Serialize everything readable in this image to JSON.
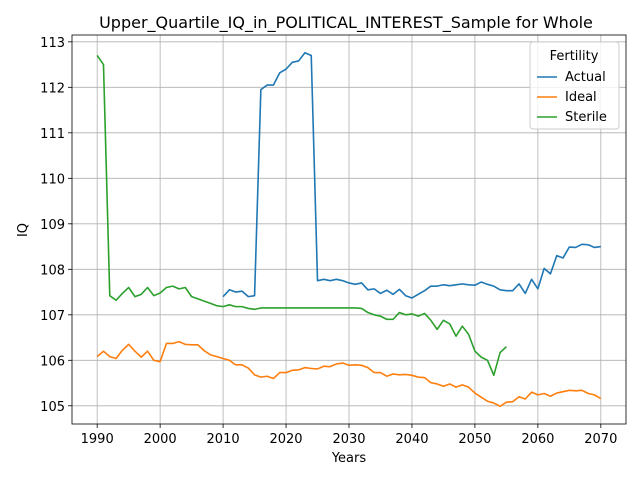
{
  "chart_data": {
    "type": "line",
    "title": "Upper_Quartile_IQ_in_POLITICAL_INTEREST_Sample for Whole",
    "xlabel": "Years",
    "ylabel": "IQ",
    "xlim": [
      1986,
      2074
    ],
    "ylim": [
      104.6,
      113.15
    ],
    "xticks": [
      1990,
      2000,
      2010,
      2020,
      2030,
      2040,
      2050,
      2060,
      2070
    ],
    "yticks": [
      105,
      106,
      107,
      108,
      109,
      110,
      111,
      112,
      113
    ],
    "grid": true,
    "legend": {
      "title": "Fertility",
      "placement": "top-right"
    },
    "series": [
      {
        "name": "Actual",
        "color": "#1f77b4",
        "x": [
          2010,
          2011,
          2012,
          2013,
          2014,
          2015,
          2016,
          2017,
          2018,
          2019,
          2020,
          2021,
          2022,
          2023,
          2024,
          2025,
          2026,
          2027,
          2028,
          2029,
          2030,
          2031,
          2032,
          2033,
          2034,
          2035,
          2036,
          2037,
          2038,
          2039,
          2040,
          2041,
          2042,
          2043,
          2044,
          2045,
          2046,
          2047,
          2048,
          2049,
          2050,
          2051,
          2052,
          2053,
          2054,
          2055,
          2056,
          2057,
          2058,
          2059,
          2060,
          2061,
          2062,
          2063,
          2064,
          2065,
          2066,
          2067,
          2068,
          2069,
          2070
        ],
        "values": [
          107.4,
          107.55,
          107.5,
          107.52,
          107.4,
          107.42,
          111.95,
          112.05,
          112.05,
          112.32,
          112.4,
          112.55,
          112.58,
          112.76,
          112.7,
          107.75,
          107.78,
          107.75,
          107.78,
          107.75,
          107.7,
          107.67,
          107.7,
          107.55,
          107.57,
          107.47,
          107.54,
          107.45,
          107.56,
          107.42,
          107.37,
          107.45,
          107.53,
          107.63,
          107.63,
          107.66,
          107.64,
          107.66,
          107.68,
          107.66,
          107.65,
          107.72,
          107.67,
          107.63,
          107.55,
          107.53,
          107.53,
          107.68,
          107.47,
          107.78,
          107.57,
          108.02,
          107.9,
          108.3,
          108.25,
          108.49,
          108.48,
          108.55,
          108.54,
          108.48,
          108.5
        ]
      },
      {
        "name": "Ideal",
        "color": "#ff7f0e",
        "x": [
          1990,
          1991,
          1992,
          1993,
          1994,
          1995,
          1996,
          1997,
          1998,
          1999,
          2000,
          2001,
          2002,
          2003,
          2004,
          2005,
          2006,
          2007,
          2008,
          2009,
          2010,
          2011,
          2012,
          2013,
          2014,
          2015,
          2016,
          2017,
          2018,
          2019,
          2020,
          2021,
          2022,
          2023,
          2024,
          2025,
          2026,
          2027,
          2028,
          2029,
          2030,
          2031,
          2032,
          2033,
          2034,
          2035,
          2036,
          2037,
          2038,
          2039,
          2040,
          2041,
          2042,
          2043,
          2044,
          2045,
          2046,
          2047,
          2048,
          2049,
          2050,
          2051,
          2052,
          2053,
          2054,
          2055,
          2056,
          2057,
          2058,
          2059,
          2060,
          2061,
          2062,
          2063,
          2064,
          2065,
          2066,
          2067,
          2068,
          2069,
          2070
        ],
        "values": [
          106.08,
          106.2,
          106.08,
          106.04,
          106.22,
          106.35,
          106.2,
          106.07,
          106.2,
          106.0,
          105.97,
          106.37,
          106.37,
          106.41,
          106.35,
          106.34,
          106.34,
          106.21,
          106.12,
          106.08,
          106.04,
          106.0,
          105.9,
          105.9,
          105.83,
          105.68,
          105.63,
          105.65,
          105.6,
          105.73,
          105.73,
          105.78,
          105.79,
          105.84,
          105.82,
          105.81,
          105.87,
          105.86,
          105.92,
          105.94,
          105.89,
          105.9,
          105.89,
          105.84,
          105.73,
          105.73,
          105.65,
          105.7,
          105.68,
          105.69,
          105.67,
          105.63,
          105.62,
          105.51,
          105.48,
          105.43,
          105.48,
          105.41,
          105.46,
          105.41,
          105.28,
          105.19,
          105.1,
          105.06,
          104.99,
          105.08,
          105.09,
          105.2,
          105.15,
          105.3,
          105.24,
          105.27,
          105.21,
          105.28,
          105.31,
          105.34,
          105.33,
          105.34,
          105.27,
          105.24,
          105.16
        ]
      },
      {
        "name": "Sterile",
        "color": "#2ca02c",
        "x": [
          1990,
          1991,
          1992,
          1993,
          1994,
          1995,
          1996,
          1997,
          1998,
          1999,
          2000,
          2001,
          2002,
          2003,
          2004,
          2005,
          2006,
          2007,
          2008,
          2009,
          2010,
          2011,
          2012,
          2013,
          2014,
          2015,
          2016,
          2017,
          2018,
          2019,
          2020,
          2021,
          2022,
          2023,
          2024,
          2025,
          2026,
          2027,
          2028,
          2029,
          2030,
          2031,
          2032,
          2033,
          2034,
          2035,
          2036,
          2037,
          2038,
          2039,
          2040,
          2041,
          2042,
          2043,
          2044,
          2045,
          2046,
          2047,
          2048,
          2049,
          2050,
          2051,
          2052,
          2053,
          2054,
          2055
        ],
        "values": [
          112.7,
          112.5,
          107.42,
          107.32,
          107.47,
          107.6,
          107.4,
          107.45,
          107.6,
          107.42,
          107.48,
          107.6,
          107.63,
          107.57,
          107.6,
          107.4,
          107.35,
          107.3,
          107.25,
          107.2,
          107.18,
          107.22,
          107.18,
          107.18,
          107.14,
          107.12,
          107.15,
          107.15,
          107.15,
          107.15,
          107.15,
          107.15,
          107.15,
          107.15,
          107.15,
          107.15,
          107.15,
          107.15,
          107.15,
          107.15,
          107.15,
          107.15,
          107.14,
          107.05,
          107.0,
          106.97,
          106.9,
          106.9,
          107.05,
          107.0,
          107.02,
          106.97,
          107.03,
          106.88,
          106.68,
          106.88,
          106.8,
          106.53,
          106.75,
          106.57,
          106.2,
          106.07,
          106.0,
          105.67,
          106.17,
          106.3
        ]
      }
    ]
  }
}
